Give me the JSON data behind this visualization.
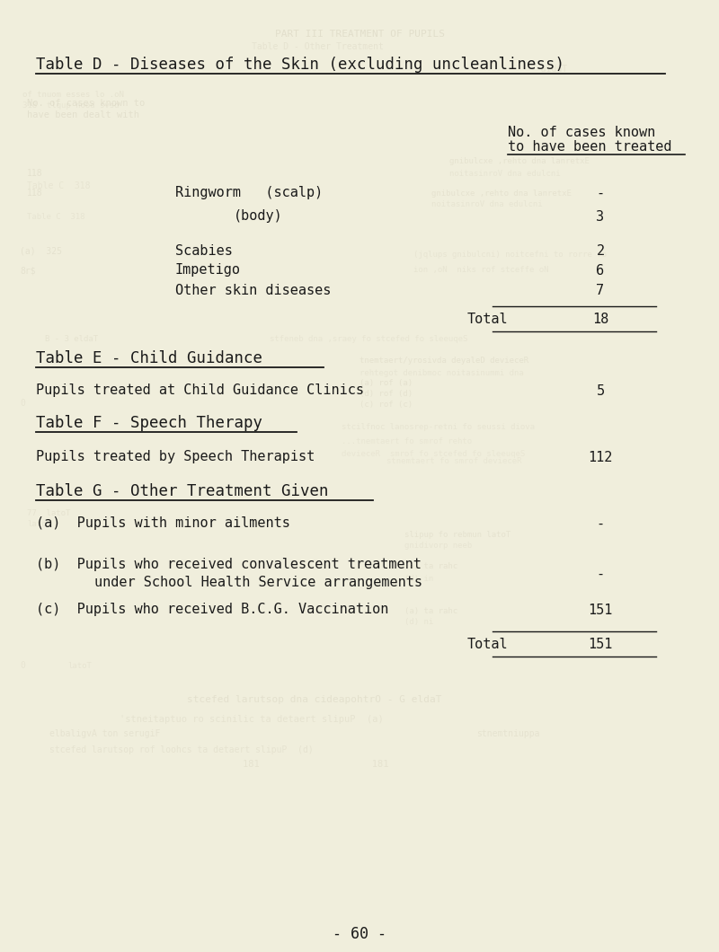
{
  "bg_color": "#f0eedc",
  "text_color": "#1a1a1a",
  "faded_color": "#b8b09a",
  "page_number": "- 60 -",
  "header_title": "Table D - Diseases of the Skin (excluding uncleanliness)",
  "col_header_line1": "No. of cases known",
  "col_header_line2": "to have been treated",
  "table_d_total_label": "Total",
  "table_d_total_value": "18",
  "table_e_title": "Table E - Child Guidance",
  "table_e_row": "Pupils treated at Child Guidance Clinics",
  "table_e_value": "5",
  "table_f_title": "Table F - Speech Therapy",
  "table_f_row": "Pupils treated by Speech Therapist",
  "table_f_value": "112",
  "table_g_title": "Table G - Other Treatment Given",
  "table_g_total_label": "Total",
  "table_g_total_value": "151"
}
